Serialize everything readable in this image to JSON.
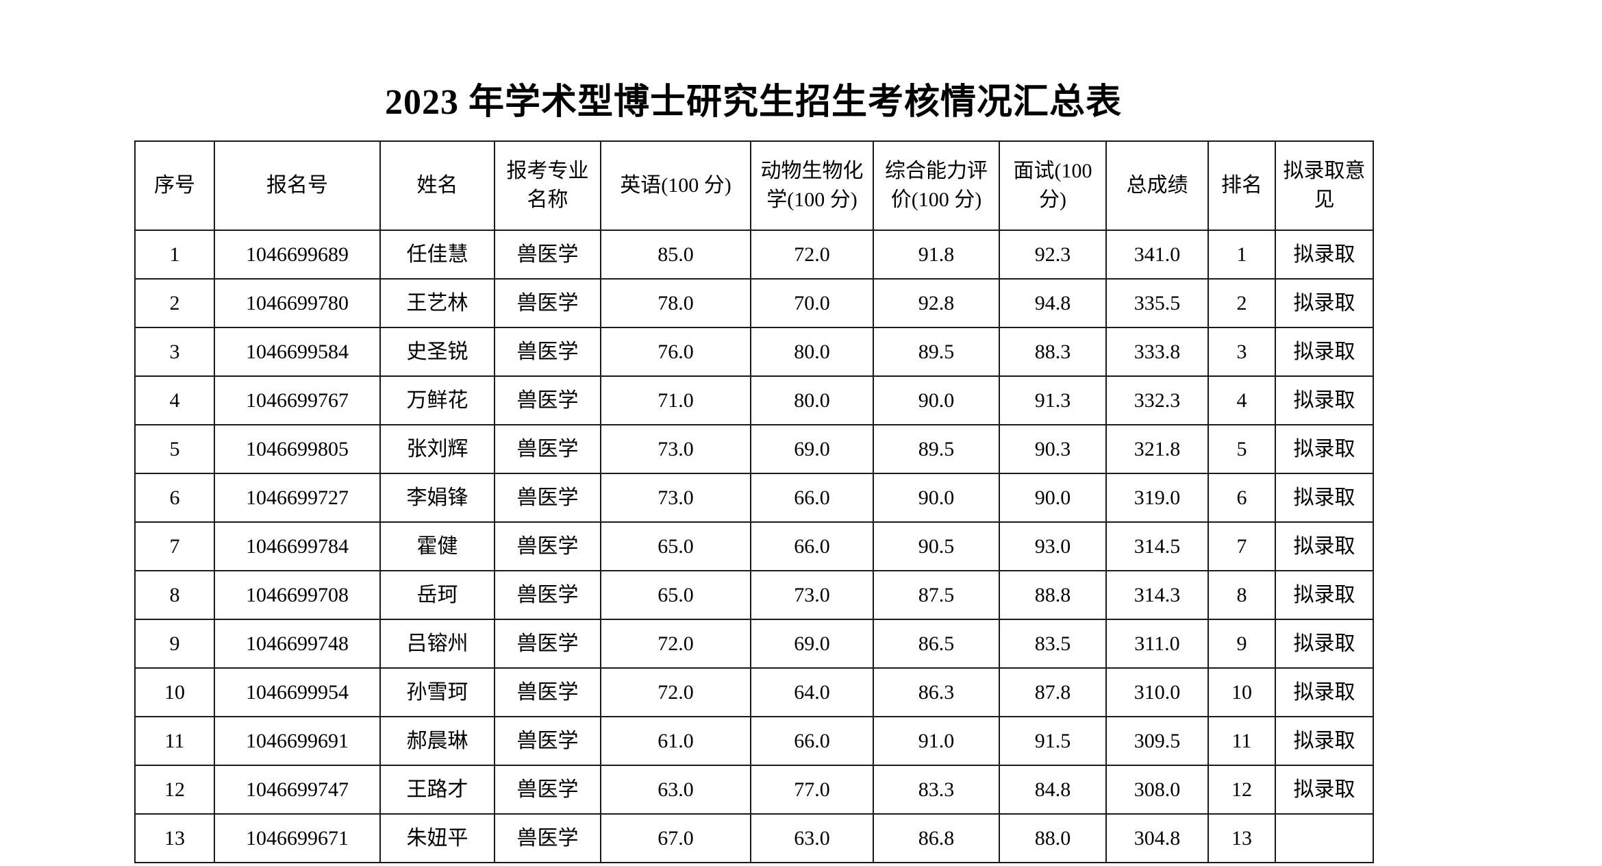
{
  "page": {
    "title": "2023 年学术型博士研究生招生考核情况汇总表"
  },
  "table": {
    "columns": [
      {
        "key": "seq",
        "label": "序号"
      },
      {
        "key": "reg_no",
        "label": "报名号"
      },
      {
        "key": "name",
        "label": "姓名"
      },
      {
        "key": "major",
        "label": "报考专业名称"
      },
      {
        "key": "english",
        "label": "英语(100 分)"
      },
      {
        "key": "biochem",
        "label": "动物生物化学(100 分)"
      },
      {
        "key": "ability",
        "label": "综合能力评价(100 分)"
      },
      {
        "key": "interview",
        "label": "面试(100 分)"
      },
      {
        "key": "total",
        "label": "总成绩"
      },
      {
        "key": "rank",
        "label": "排名"
      },
      {
        "key": "opinion",
        "label": "拟录取意见"
      }
    ],
    "rows": [
      {
        "seq": "1",
        "reg_no": "1046699689",
        "name": "任佳慧",
        "major": "兽医学",
        "english": "85.0",
        "biochem": "72.0",
        "ability": "91.8",
        "interview": "92.3",
        "total": "341.0",
        "rank": "1",
        "opinion": "拟录取"
      },
      {
        "seq": "2",
        "reg_no": "1046699780",
        "name": "王艺林",
        "major": "兽医学",
        "english": "78.0",
        "biochem": "70.0",
        "ability": "92.8",
        "interview": "94.8",
        "total": "335.5",
        "rank": "2",
        "opinion": "拟录取"
      },
      {
        "seq": "3",
        "reg_no": "1046699584",
        "name": "史圣锐",
        "major": "兽医学",
        "english": "76.0",
        "biochem": "80.0",
        "ability": "89.5",
        "interview": "88.3",
        "total": "333.8",
        "rank": "3",
        "opinion": "拟录取"
      },
      {
        "seq": "4",
        "reg_no": "1046699767",
        "name": "万鲜花",
        "major": "兽医学",
        "english": "71.0",
        "biochem": "80.0",
        "ability": "90.0",
        "interview": "91.3",
        "total": "332.3",
        "rank": "4",
        "opinion": "拟录取"
      },
      {
        "seq": "5",
        "reg_no": "1046699805",
        "name": "张刘辉",
        "major": "兽医学",
        "english": "73.0",
        "biochem": "69.0",
        "ability": "89.5",
        "interview": "90.3",
        "total": "321.8",
        "rank": "5",
        "opinion": "拟录取"
      },
      {
        "seq": "6",
        "reg_no": "1046699727",
        "name": "李娟锋",
        "major": "兽医学",
        "english": "73.0",
        "biochem": "66.0",
        "ability": "90.0",
        "interview": "90.0",
        "total": "319.0",
        "rank": "6",
        "opinion": "拟录取"
      },
      {
        "seq": "7",
        "reg_no": "1046699784",
        "name": "霍健",
        "major": "兽医学",
        "english": "65.0",
        "biochem": "66.0",
        "ability": "90.5",
        "interview": "93.0",
        "total": "314.5",
        "rank": "7",
        "opinion": "拟录取"
      },
      {
        "seq": "8",
        "reg_no": "1046699708",
        "name": "岳珂",
        "major": "兽医学",
        "english": "65.0",
        "biochem": "73.0",
        "ability": "87.5",
        "interview": "88.8",
        "total": "314.3",
        "rank": "8",
        "opinion": "拟录取"
      },
      {
        "seq": "9",
        "reg_no": "1046699748",
        "name": "吕镕州",
        "major": "兽医学",
        "english": "72.0",
        "biochem": "69.0",
        "ability": "86.5",
        "interview": "83.5",
        "total": "311.0",
        "rank": "9",
        "opinion": "拟录取"
      },
      {
        "seq": "10",
        "reg_no": "1046699954",
        "name": "孙雪珂",
        "major": "兽医学",
        "english": "72.0",
        "biochem": "64.0",
        "ability": "86.3",
        "interview": "87.8",
        "total": "310.0",
        "rank": "10",
        "opinion": "拟录取"
      },
      {
        "seq": "11",
        "reg_no": "1046699691",
        "name": "郝晨琳",
        "major": "兽医学",
        "english": "61.0",
        "biochem": "66.0",
        "ability": "91.0",
        "interview": "91.5",
        "total": "309.5",
        "rank": "11",
        "opinion": "拟录取"
      },
      {
        "seq": "12",
        "reg_no": "1046699747",
        "name": "王路才",
        "major": "兽医学",
        "english": "63.0",
        "biochem": "77.0",
        "ability": "83.3",
        "interview": "84.8",
        "total": "308.0",
        "rank": "12",
        "opinion": "拟录取"
      },
      {
        "seq": "13",
        "reg_no": "1046699671",
        "name": "朱妞平",
        "major": "兽医学",
        "english": "67.0",
        "biochem": "63.0",
        "ability": "86.8",
        "interview": "88.0",
        "total": "304.8",
        "rank": "13",
        "opinion": ""
      }
    ]
  }
}
